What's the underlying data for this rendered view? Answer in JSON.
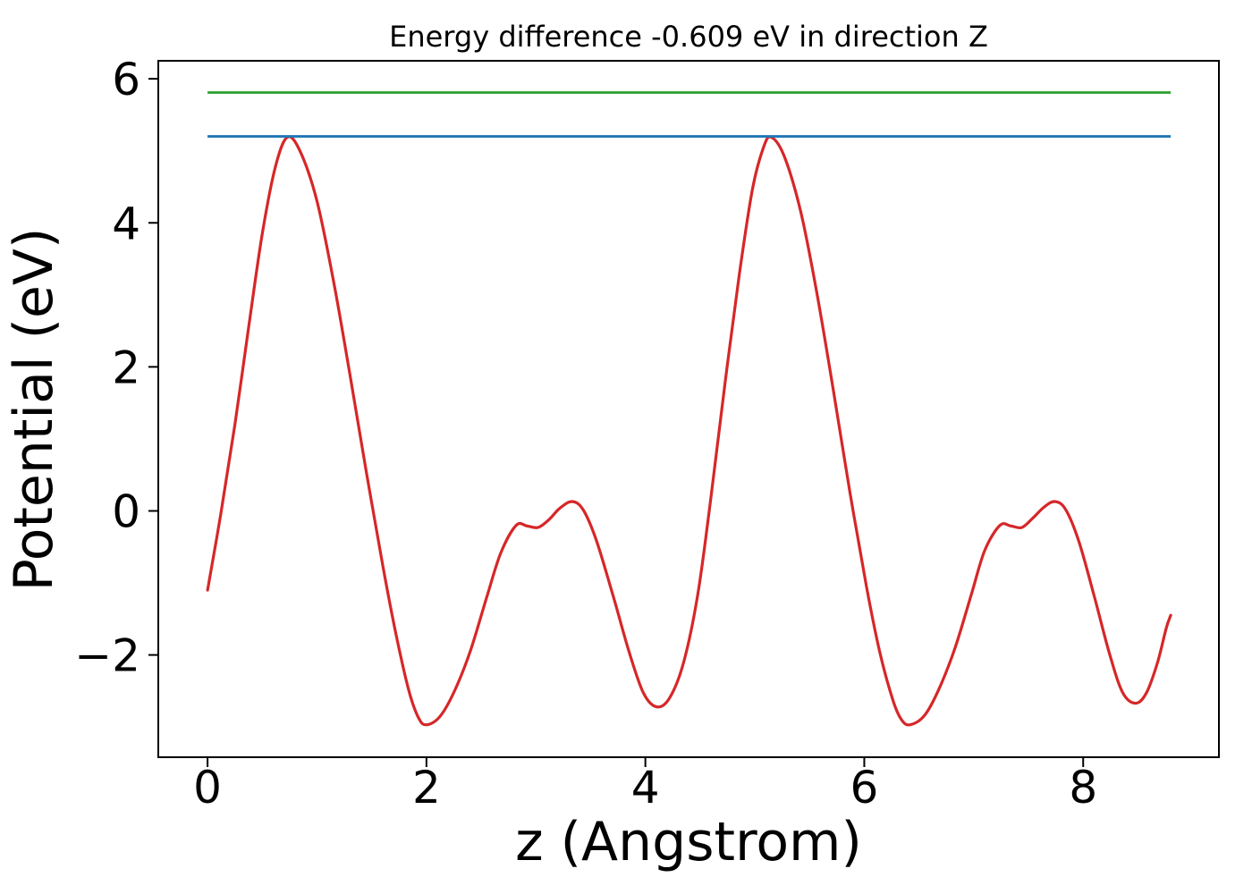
{
  "figure": {
    "background": "#ffffff",
    "title": "Energy difference -0.609 eV in direction Z",
    "xlabel": "z (Angstrom)",
    "ylabel": "Potential (eV)"
  },
  "chart_data": {
    "type": "line",
    "title": "Energy difference -0.609 eV in direction Z",
    "xlabel": "z (Angstrom)",
    "ylabel": "Potential (eV)",
    "energy_difference_eV": -0.609,
    "grid": false,
    "legend": "none",
    "xlim": [
      -0.45,
      9.24
    ],
    "ylim": [
      -3.42,
      6.25
    ],
    "xticks": [
      0,
      2,
      4,
      6,
      8
    ],
    "xticklabels": [
      "0",
      "2",
      "4",
      "6",
      "8"
    ],
    "yticks": [
      6,
      4,
      2,
      0,
      -2
    ],
    "yticklabels": [
      "6",
      "4",
      "2",
      "0",
      "−2"
    ],
    "axis_color": "#000000",
    "series": [
      {
        "name": "planar-average-potential",
        "kind": "curve",
        "color": "#d62728",
        "line_width": 3.2,
        "points": [
          [
            0.0,
            -1.1
          ],
          [
            0.12,
            -0.05
          ],
          [
            0.25,
            1.2
          ],
          [
            0.38,
            2.6
          ],
          [
            0.5,
            3.85
          ],
          [
            0.62,
            4.78
          ],
          [
            0.73,
            5.19
          ],
          [
            0.85,
            4.98
          ],
          [
            1.0,
            4.3
          ],
          [
            1.15,
            3.2
          ],
          [
            1.3,
            1.9
          ],
          [
            1.45,
            0.55
          ],
          [
            1.6,
            -0.75
          ],
          [
            1.72,
            -1.7
          ],
          [
            1.84,
            -2.5
          ],
          [
            1.93,
            -2.88
          ],
          [
            2.0,
            -2.97
          ],
          [
            2.12,
            -2.86
          ],
          [
            2.25,
            -2.52
          ],
          [
            2.4,
            -1.95
          ],
          [
            2.55,
            -1.2
          ],
          [
            2.68,
            -0.58
          ],
          [
            2.82,
            -0.2
          ],
          [
            2.92,
            -0.21
          ],
          [
            3.02,
            -0.23
          ],
          [
            3.12,
            -0.12
          ],
          [
            3.22,
            0.04
          ],
          [
            3.33,
            0.13
          ],
          [
            3.43,
            0.02
          ],
          [
            3.55,
            -0.4
          ],
          [
            3.7,
            -1.15
          ],
          [
            3.85,
            -1.95
          ],
          [
            3.98,
            -2.52
          ],
          [
            4.1,
            -2.72
          ],
          [
            4.22,
            -2.6
          ],
          [
            4.35,
            -2.1
          ],
          [
            4.48,
            -1.15
          ],
          [
            4.6,
            0.2
          ],
          [
            4.73,
            1.8
          ],
          [
            4.86,
            3.3
          ],
          [
            4.98,
            4.48
          ],
          [
            5.08,
            5.05
          ],
          [
            5.15,
            5.19
          ],
          [
            5.27,
            4.92
          ],
          [
            5.42,
            4.15
          ],
          [
            5.57,
            3.0
          ],
          [
            5.72,
            1.65
          ],
          [
            5.87,
            0.25
          ],
          [
            6.02,
            -1.05
          ],
          [
            6.14,
            -1.95
          ],
          [
            6.26,
            -2.62
          ],
          [
            6.34,
            -2.9
          ],
          [
            6.42,
            -2.97
          ],
          [
            6.55,
            -2.84
          ],
          [
            6.68,
            -2.48
          ],
          [
            6.83,
            -1.9
          ],
          [
            6.98,
            -1.15
          ],
          [
            7.1,
            -0.55
          ],
          [
            7.24,
            -0.2
          ],
          [
            7.34,
            -0.21
          ],
          [
            7.44,
            -0.23
          ],
          [
            7.54,
            -0.1
          ],
          [
            7.64,
            0.05
          ],
          [
            7.74,
            0.13
          ],
          [
            7.84,
            0.02
          ],
          [
            7.96,
            -0.42
          ],
          [
            8.1,
            -1.18
          ],
          [
            8.24,
            -1.98
          ],
          [
            8.36,
            -2.52
          ],
          [
            8.48,
            -2.67
          ],
          [
            8.58,
            -2.52
          ],
          [
            8.68,
            -2.1
          ],
          [
            8.76,
            -1.62
          ],
          [
            8.8,
            -1.45
          ]
        ]
      },
      {
        "name": "vacuum-level-upper",
        "kind": "hline",
        "color": "#2ca02c",
        "line_width": 2.8,
        "y": 5.809,
        "x_range": [
          0,
          8.8
        ]
      },
      {
        "name": "vacuum-level-lower",
        "kind": "hline",
        "color": "#1f77b4",
        "line_width": 2.8,
        "y": 5.2,
        "x_range": [
          0,
          8.8
        ]
      }
    ]
  }
}
